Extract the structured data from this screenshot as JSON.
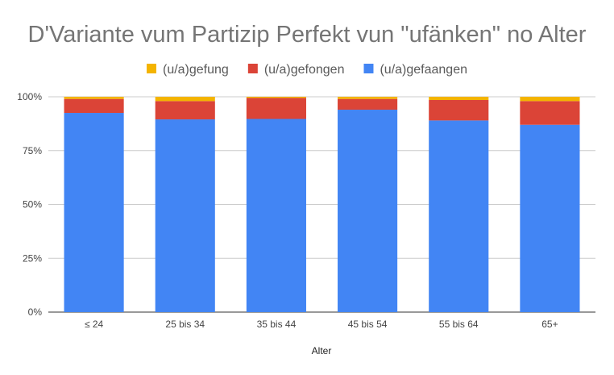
{
  "chart_data": {
    "type": "bar",
    "stacked": true,
    "title": "D'Variante vum Partizip Perfekt vun \"ufänken\" no Alter",
    "xlabel": "Alter",
    "ylabel": "",
    "ylim": [
      0,
      100
    ],
    "yticks": [
      "0%",
      "25%",
      "50%",
      "75%",
      "100%"
    ],
    "grid": true,
    "legend_position": "top",
    "categories": [
      "≤ 24",
      "25 bis 34",
      "35 bis 44",
      "45 bis 54",
      "55 bis 64",
      "65+"
    ],
    "series": [
      {
        "name": "(u/a)gefaangen",
        "color": "#4285f4",
        "values": [
          92.5,
          89.5,
          89.7,
          94.0,
          89.0,
          87.0
        ]
      },
      {
        "name": "(u/a)gefongen",
        "color": "#db4437",
        "values": [
          6.5,
          8.5,
          9.8,
          5.0,
          9.5,
          11.0
        ]
      },
      {
        "name": "(u/a)gefung",
        "color": "#f4b400",
        "values": [
          1.0,
          2.0,
          0.5,
          1.0,
          1.5,
          2.0
        ]
      }
    ],
    "legend_order": [
      "(u/a)gefung",
      "(u/a)gefongen",
      "(u/a)gefaangen"
    ]
  }
}
